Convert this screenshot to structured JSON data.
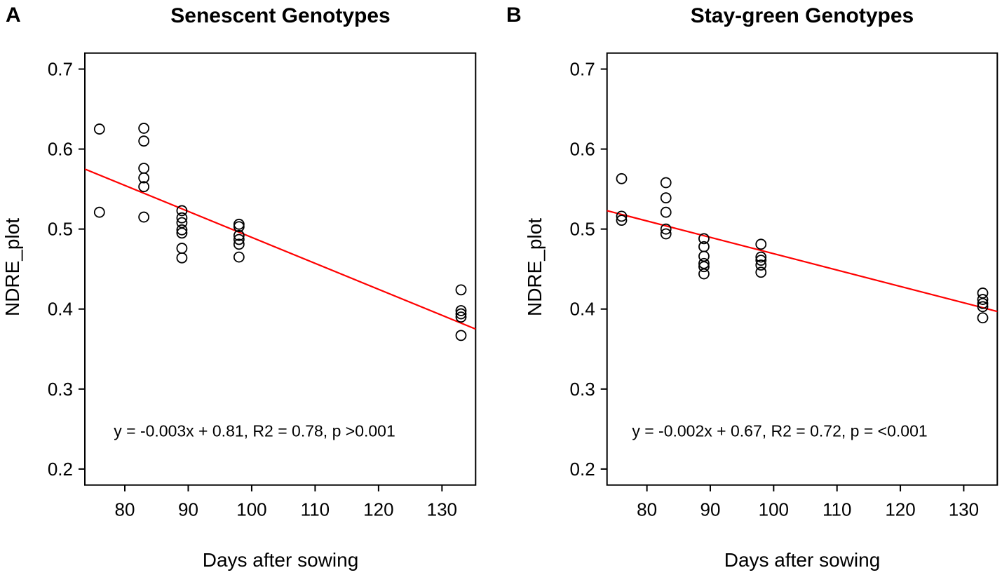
{
  "figure": {
    "background": "#ffffff",
    "axis_color": "#000000",
    "point_color": "#000000",
    "regression_color": "#ff0000"
  },
  "chart_data": [
    {
      "type": "scatter",
      "panel_label": "A",
      "title": "Senescent Genotypes",
      "xlabel": "Days after sowing",
      "ylabel": "NDRE_plot",
      "annotation": "y = -0.003x + 0.81, R2 = 0.78, p >0.001",
      "marker": "open-circle",
      "grid": false,
      "legend": null,
      "xlim": [
        73.7,
        135.3
      ],
      "ylim": [
        0.18,
        0.72
      ],
      "x_ticks": [
        80,
        90,
        100,
        110,
        120,
        130
      ],
      "y_ticks": [
        0.2,
        0.3,
        0.4,
        0.5,
        0.6,
        0.7
      ],
      "annotation_pos": {
        "x": 100.4,
        "y": 0.248
      },
      "regression_line": {
        "x": [
          73.7,
          135.3
        ],
        "y": [
          0.575,
          0.375
        ]
      },
      "points": [
        {
          "x": 76,
          "y": 0.625
        },
        {
          "x": 76,
          "y": 0.521
        },
        {
          "x": 83,
          "y": 0.626
        },
        {
          "x": 83,
          "y": 0.61
        },
        {
          "x": 83,
          "y": 0.576
        },
        {
          "x": 83,
          "y": 0.564
        },
        {
          "x": 83,
          "y": 0.553
        },
        {
          "x": 83,
          "y": 0.515
        },
        {
          "x": 89,
          "y": 0.523
        },
        {
          "x": 89,
          "y": 0.514
        },
        {
          "x": 89,
          "y": 0.508
        },
        {
          "x": 89,
          "y": 0.499
        },
        {
          "x": 89,
          "y": 0.495
        },
        {
          "x": 89,
          "y": 0.476
        },
        {
          "x": 89,
          "y": 0.464
        },
        {
          "x": 98,
          "y": 0.506
        },
        {
          "x": 98,
          "y": 0.503
        },
        {
          "x": 98,
          "y": 0.492
        },
        {
          "x": 98,
          "y": 0.487
        },
        {
          "x": 98,
          "y": 0.481
        },
        {
          "x": 98,
          "y": 0.465
        },
        {
          "x": 133,
          "y": 0.424
        },
        {
          "x": 133,
          "y": 0.398
        },
        {
          "x": 133,
          "y": 0.394
        },
        {
          "x": 133,
          "y": 0.39
        },
        {
          "x": 133,
          "y": 0.367
        }
      ]
    },
    {
      "type": "scatter",
      "panel_label": "B",
      "title": "Stay-green Genotypes",
      "xlabel": "Days after sowing",
      "ylabel": "NDRE_plot",
      "annotation": "y = -0.002x + 0.67, R2 = 0.72, p = <0.001",
      "marker": "open-circle",
      "grid": false,
      "legend": null,
      "xlim": [
        73.7,
        135.3
      ],
      "ylim": [
        0.18,
        0.72
      ],
      "x_ticks": [
        80,
        90,
        100,
        110,
        120,
        130
      ],
      "y_ticks": [
        0.2,
        0.3,
        0.4,
        0.5,
        0.6,
        0.7
      ],
      "annotation_pos": {
        "x": 100.9,
        "y": 0.248
      },
      "regression_line": {
        "x": [
          73.7,
          135.3
        ],
        "y": [
          0.523,
          0.397
        ]
      },
      "points": [
        {
          "x": 76,
          "y": 0.563
        },
        {
          "x": 76,
          "y": 0.516
        },
        {
          "x": 76,
          "y": 0.511
        },
        {
          "x": 83,
          "y": 0.558
        },
        {
          "x": 83,
          "y": 0.539
        },
        {
          "x": 83,
          "y": 0.521
        },
        {
          "x": 83,
          "y": 0.5
        },
        {
          "x": 83,
          "y": 0.494
        },
        {
          "x": 89,
          "y": 0.488
        },
        {
          "x": 89,
          "y": 0.478
        },
        {
          "x": 89,
          "y": 0.466
        },
        {
          "x": 89,
          "y": 0.457
        },
        {
          "x": 89,
          "y": 0.453
        },
        {
          "x": 89,
          "y": 0.444
        },
        {
          "x": 98,
          "y": 0.481
        },
        {
          "x": 98,
          "y": 0.465
        },
        {
          "x": 98,
          "y": 0.461
        },
        {
          "x": 98,
          "y": 0.455
        },
        {
          "x": 98,
          "y": 0.446
        },
        {
          "x": 133,
          "y": 0.42
        },
        {
          "x": 133,
          "y": 0.412
        },
        {
          "x": 133,
          "y": 0.407
        },
        {
          "x": 133,
          "y": 0.403
        },
        {
          "x": 133,
          "y": 0.389
        }
      ]
    }
  ]
}
